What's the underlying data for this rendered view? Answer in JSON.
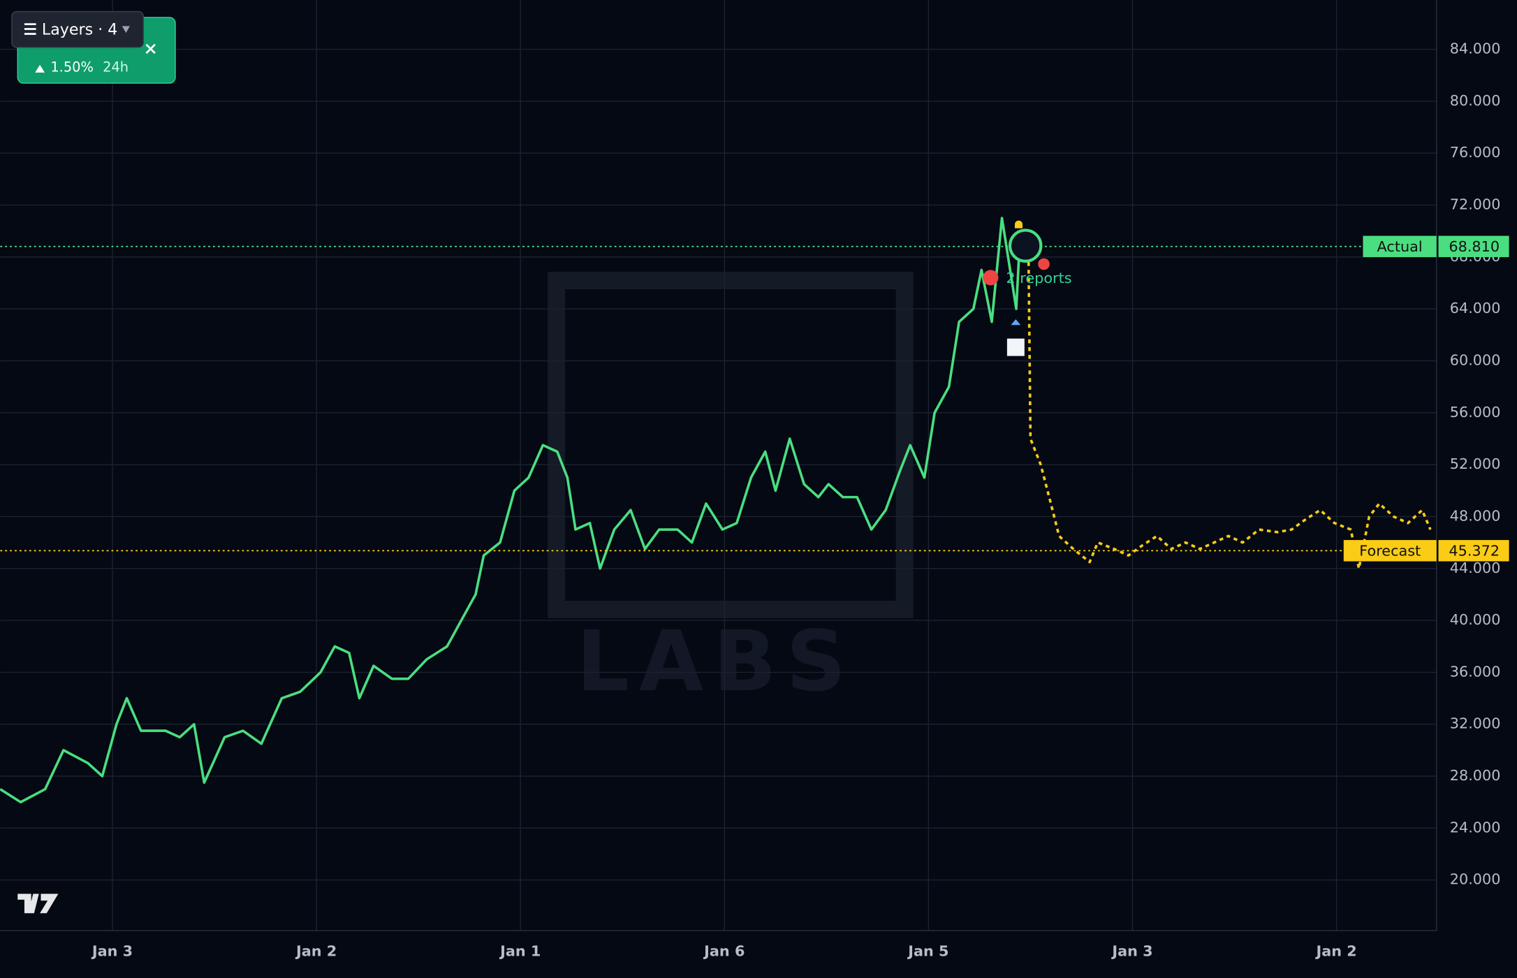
{
  "chart_data": {
    "type": "line",
    "watermark": "LABS",
    "annotation": "2 reports",
    "xlim": [
      0.45,
      7.49
    ],
    "xticks": [
      {
        "value": 1,
        "label": "Jan 3"
      },
      {
        "value": 2,
        "label": "Jan 2"
      },
      {
        "value": 3,
        "label": "Jan 1"
      },
      {
        "value": 4,
        "label": "Jan 6"
      },
      {
        "value": 5,
        "label": "Jan 5"
      },
      {
        "value": 6,
        "label": "Jan 3"
      },
      {
        "value": 7,
        "label": "Jan 2"
      }
    ],
    "ylim": [
      16.1,
      87.8
    ],
    "yticks": [
      {
        "value": 20,
        "label": "20.000"
      },
      {
        "value": 24,
        "label": "24.000"
      },
      {
        "value": 28,
        "label": "28.000"
      },
      {
        "value": 32,
        "label": "32.000"
      },
      {
        "value": 36,
        "label": "36.000"
      },
      {
        "value": 40,
        "label": "40.000"
      },
      {
        "value": 44,
        "label": "44.000"
      },
      {
        "value": 48,
        "label": "48.000"
      },
      {
        "value": 52,
        "label": "52.000"
      },
      {
        "value": 56,
        "label": "56.000"
      },
      {
        "value": 60,
        "label": "60.000"
      },
      {
        "value": 64,
        "label": "64.000"
      },
      {
        "value": 68,
        "label": "68.000"
      },
      {
        "value": 72,
        "label": "72.000"
      },
      {
        "value": 76,
        "label": "76.000"
      },
      {
        "value": 80,
        "label": "80.000"
      },
      {
        "value": 84,
        "label": "84.000"
      }
    ],
    "grid": true,
    "series": [
      {
        "name": "Actual",
        "color": "#4ade80",
        "style": "solid",
        "x": [
          0.45,
          0.55,
          0.67,
          0.76,
          0.88,
          0.95,
          1.02,
          1.07,
          1.14,
          1.26,
          1.33,
          1.4,
          1.45,
          1.55,
          1.64,
          1.73,
          1.83,
          1.92,
          2.02,
          2.09,
          2.16,
          2.21,
          2.28,
          2.37,
          2.45,
          2.54,
          2.64,
          2.71,
          2.78,
          2.82,
          2.9,
          2.97,
          3.04,
          3.11,
          3.18,
          3.23,
          3.27,
          3.34,
          3.39,
          3.46,
          3.54,
          3.61,
          3.68,
          3.77,
          3.84,
          3.91,
          3.99,
          4.06,
          4.13,
          4.2,
          4.25,
          4.32,
          4.39,
          4.46,
          4.51,
          4.58,
          4.65,
          4.72,
          4.79,
          4.86,
          4.91,
          4.98,
          5.03,
          5.1,
          5.15,
          5.22,
          5.26,
          5.31,
          5.36,
          5.41,
          5.43,
          5.45,
          5.49
        ],
        "values": [
          27,
          26,
          27,
          30,
          29,
          28,
          32,
          34,
          31.5,
          31.5,
          31,
          32,
          27.5,
          31,
          31.5,
          30.5,
          34,
          34.5,
          36,
          38,
          37.5,
          34,
          36.5,
          35.5,
          35.5,
          37,
          38,
          40,
          42,
          45,
          46,
          50,
          51,
          53.5,
          53,
          51,
          47,
          47.5,
          44,
          47,
          48.5,
          45.5,
          47,
          47,
          46,
          49,
          47,
          47.5,
          51,
          53,
          50,
          54,
          50.5,
          49.5,
          50.5,
          49.5,
          49.5,
          47,
          48.5,
          51.5,
          53.5,
          51,
          56,
          58,
          63,
          64,
          67,
          63,
          71,
          66,
          64,
          70,
          68.8
        ],
        "price_line": 68.81,
        "price_label": "68.810"
      },
      {
        "name": "Forecast",
        "color": "#facc15",
        "style": "dotted",
        "x": [
          5.49,
          5.5,
          5.55,
          5.6,
          5.64,
          5.71,
          5.79,
          5.83,
          5.91,
          5.98,
          6.05,
          6.12,
          6.19,
          6.26,
          6.33,
          6.4,
          6.47,
          6.54,
          6.62,
          6.71,
          6.78,
          6.85,
          6.92,
          6.99,
          7.07,
          7.11,
          7.16,
          7.21,
          7.28,
          7.35,
          7.42,
          7.46
        ],
        "values": [
          68.8,
          54,
          52,
          49,
          46.5,
          45.5,
          44.5,
          46,
          45.5,
          45,
          45.8,
          46.5,
          45.5,
          46,
          45.5,
          46,
          46.5,
          46,
          47,
          46.8,
          47,
          47.8,
          48.5,
          47.5,
          47,
          44,
          48,
          49,
          48,
          47.5,
          48.5,
          47
        ],
        "price_line": 45.372,
        "price_label": "45.372"
      }
    ]
  },
  "widget": {
    "layers": "Layers · 4",
    "change": "1.50%",
    "period": "24h"
  }
}
